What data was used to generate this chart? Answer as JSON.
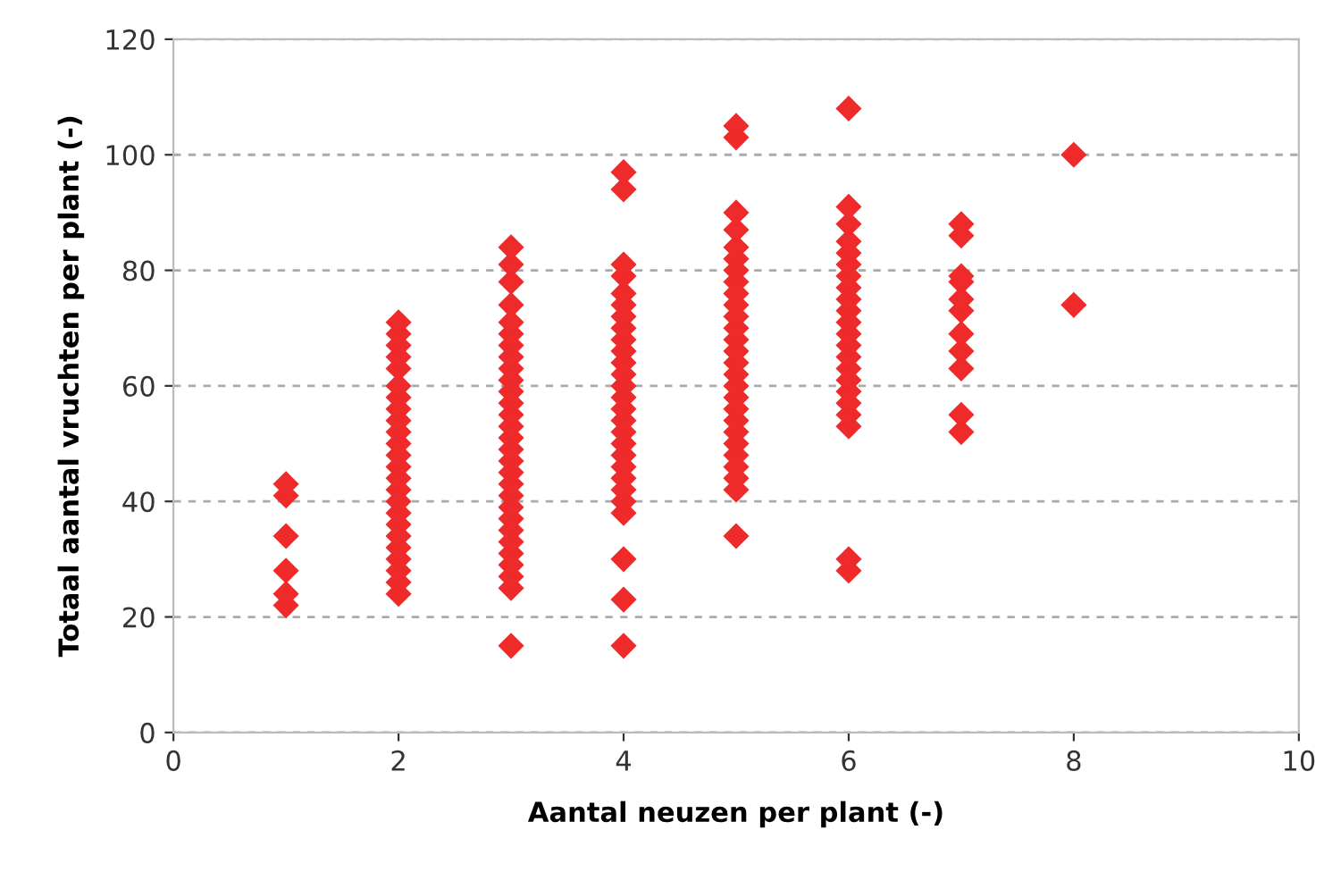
{
  "chart_data": {
    "type": "scatter",
    "xlabel": "Aantal neuzen per plant (-)",
    "ylabel": "Totaal aantal vruchten per plant (-)",
    "xlim": [
      0,
      10
    ],
    "xticks": [
      0,
      2,
      4,
      6,
      8,
      10
    ],
    "ylim": [
      0,
      120
    ],
    "yticks": [
      0,
      20,
      40,
      60,
      80,
      100,
      120
    ],
    "grid": "y",
    "marker": "diamond",
    "legend": false,
    "series": [
      {
        "color": "#ee2a2a",
        "x": [
          1,
          1,
          1,
          1,
          1,
          1,
          2,
          2,
          2,
          2,
          2,
          2,
          2,
          2,
          2,
          2,
          2,
          2,
          2,
          2,
          2,
          2,
          2,
          2,
          2,
          2,
          2,
          2,
          2,
          2,
          3,
          3,
          3,
          3,
          3,
          3,
          3,
          3,
          3,
          3,
          3,
          3,
          3,
          3,
          3,
          3,
          3,
          3,
          3,
          3,
          3,
          3,
          3,
          3,
          3,
          3,
          3,
          3,
          3,
          4,
          4,
          4,
          4,
          4,
          4,
          4,
          4,
          4,
          4,
          4,
          4,
          4,
          4,
          4,
          4,
          4,
          4,
          4,
          4,
          4,
          4,
          4,
          4,
          4,
          4,
          4,
          5,
          5,
          5,
          5,
          5,
          5,
          5,
          5,
          5,
          5,
          5,
          5,
          5,
          5,
          5,
          5,
          5,
          5,
          5,
          5,
          5,
          5,
          5,
          5,
          5,
          5,
          5,
          6,
          6,
          6,
          6,
          6,
          6,
          6,
          6,
          6,
          6,
          6,
          6,
          6,
          6,
          6,
          6,
          6,
          6,
          6,
          6,
          6,
          6,
          7,
          7,
          7,
          7,
          7,
          7,
          7,
          7,
          7,
          7,
          7,
          8,
          8
        ],
        "values": [
          22,
          24,
          28,
          34,
          41,
          43,
          24,
          26,
          28,
          30,
          32,
          34,
          36,
          38,
          40,
          42,
          44,
          46,
          48,
          50,
          52,
          54,
          56,
          58,
          60,
          63,
          65,
          67,
          69,
          71,
          15,
          25,
          27,
          29,
          31,
          33,
          35,
          37,
          39,
          41,
          43,
          45,
          47,
          49,
          51,
          53,
          55,
          57,
          59,
          61,
          63,
          65,
          67,
          69,
          71,
          74,
          78,
          81,
          84,
          15,
          23,
          30,
          38,
          40,
          42,
          44,
          46,
          48,
          50,
          52,
          54,
          56,
          58,
          60,
          62,
          64,
          66,
          68,
          70,
          72,
          74,
          76,
          79,
          81,
          94,
          97,
          34,
          42,
          44,
          46,
          48,
          50,
          52,
          54,
          56,
          58,
          60,
          62,
          64,
          66,
          68,
          70,
          72,
          74,
          76,
          78,
          80,
          82,
          84,
          87,
          90,
          103,
          105,
          28,
          30,
          53,
          55,
          57,
          59,
          61,
          63,
          65,
          67,
          69,
          71,
          73,
          75,
          77,
          79,
          81,
          83,
          85,
          88,
          91,
          108,
          52,
          55,
          63,
          66,
          69,
          73,
          75,
          78,
          79,
          86,
          88,
          74,
          100
        ]
      }
    ]
  }
}
